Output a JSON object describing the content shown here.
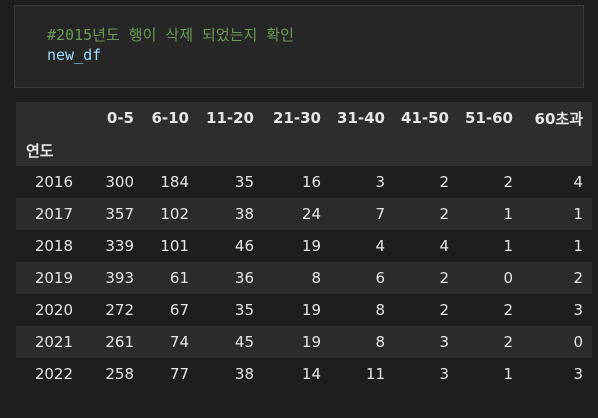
{
  "code_cell": {
    "comment": "#2015년도 행이 삭제 되었는지 확인",
    "code": "new_df"
  },
  "table": {
    "columns": [
      "0-5",
      "6-10",
      "11-20",
      "21-30",
      "31-40",
      "41-50",
      "51-60",
      "60초과"
    ],
    "index_name": "연도",
    "rows": [
      {
        "index": "2016",
        "values": [
          "300",
          "184",
          "35",
          "16",
          "3",
          "2",
          "2",
          "4"
        ]
      },
      {
        "index": "2017",
        "values": [
          "357",
          "102",
          "38",
          "24",
          "7",
          "2",
          "1",
          "1"
        ]
      },
      {
        "index": "2018",
        "values": [
          "339",
          "101",
          "46",
          "19",
          "4",
          "4",
          "1",
          "1"
        ]
      },
      {
        "index": "2019",
        "values": [
          "393",
          "61",
          "36",
          "8",
          "6",
          "2",
          "0",
          "2"
        ]
      },
      {
        "index": "2020",
        "values": [
          "272",
          "67",
          "35",
          "19",
          "8",
          "2",
          "2",
          "3"
        ]
      },
      {
        "index": "2021",
        "values": [
          "261",
          "74",
          "45",
          "19",
          "8",
          "3",
          "2",
          "0"
        ]
      },
      {
        "index": "2022",
        "values": [
          "258",
          "77",
          "38",
          "14",
          "11",
          "3",
          "1",
          "3"
        ]
      }
    ]
  }
}
